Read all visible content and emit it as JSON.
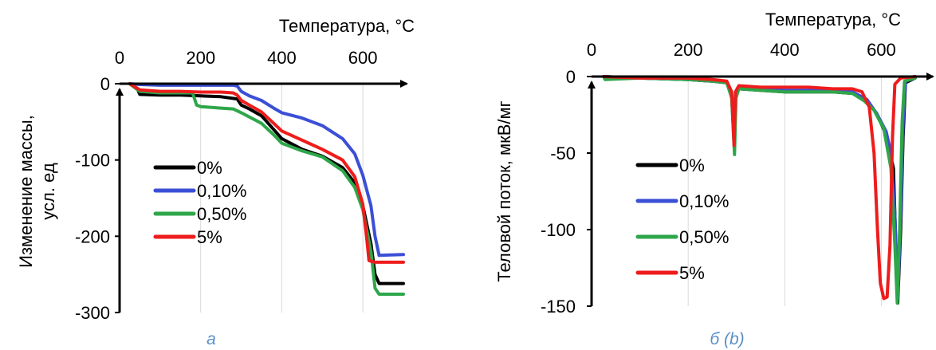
{
  "chart_data": [
    {
      "type": "line",
      "panel_label": "а",
      "xlabel": "Температура, °C",
      "ylabel_line1": "Изменение массы,",
      "ylabel_line2": "усл. ед",
      "xlim": [
        0,
        700
      ],
      "ylim": [
        -300,
        0
      ],
      "x_ticks": [
        "0",
        "200",
        "400",
        "600"
      ],
      "y_ticks": [
        "0",
        "-100",
        "-200",
        "-300"
      ],
      "grid": "vertical",
      "legend_position": "center-left",
      "series": [
        {
          "name": "0%",
          "color": "#000000",
          "points": [
            [
              25,
              0
            ],
            [
              45,
              -8
            ],
            [
              50,
              -14
            ],
            [
              100,
              -15
            ],
            [
              150,
              -15
            ],
            [
              200,
              -16
            ],
            [
              250,
              -17
            ],
            [
              290,
              -20
            ],
            [
              300,
              -28
            ],
            [
              320,
              -33
            ],
            [
              350,
              -42
            ],
            [
              380,
              -60
            ],
            [
              400,
              -72
            ],
            [
              450,
              -86
            ],
            [
              500,
              -95
            ],
            [
              550,
              -110
            ],
            [
              580,
              -130
            ],
            [
              600,
              -160
            ],
            [
              620,
              -210
            ],
            [
              630,
              -250
            ],
            [
              640,
              -262
            ],
            [
              700,
              -262
            ]
          ]
        },
        {
          "name": "0,10%",
          "color": "#3b4fd6",
          "points": [
            [
              25,
              0
            ],
            [
              50,
              -1
            ],
            [
              100,
              -2
            ],
            [
              200,
              -2
            ],
            [
              280,
              -2
            ],
            [
              290,
              -3
            ],
            [
              300,
              -10
            ],
            [
              320,
              -16
            ],
            [
              350,
              -22
            ],
            [
              380,
              -32
            ],
            [
              400,
              -38
            ],
            [
              450,
              -45
            ],
            [
              500,
              -55
            ],
            [
              550,
              -72
            ],
            [
              580,
              -92
            ],
            [
              600,
              -120
            ],
            [
              620,
              -160
            ],
            [
              630,
              -200
            ],
            [
              640,
              -225
            ],
            [
              700,
              -224
            ]
          ]
        },
        {
          "name": "0,50%",
          "color": "#2ea64a",
          "points": [
            [
              25,
              0
            ],
            [
              50,
              -10
            ],
            [
              100,
              -12
            ],
            [
              150,
              -12
            ],
            [
              180,
              -12
            ],
            [
              190,
              -28
            ],
            [
              200,
              -30
            ],
            [
              250,
              -32
            ],
            [
              280,
              -33
            ],
            [
              300,
              -38
            ],
            [
              350,
              -52
            ],
            [
              380,
              -67
            ],
            [
              400,
              -78
            ],
            [
              450,
              -88
            ],
            [
              500,
              -96
            ],
            [
              550,
              -114
            ],
            [
              580,
              -136
            ],
            [
              600,
              -165
            ],
            [
              620,
              -220
            ],
            [
              630,
              -268
            ],
            [
              640,
              -276
            ],
            [
              700,
              -276
            ]
          ]
        },
        {
          "name": "5%",
          "color": "#ee1c1c",
          "points": [
            [
              25,
              0
            ],
            [
              50,
              -8
            ],
            [
              100,
              -10
            ],
            [
              150,
              -10
            ],
            [
              200,
              -11
            ],
            [
              250,
              -11
            ],
            [
              280,
              -12
            ],
            [
              290,
              -15
            ],
            [
              300,
              -22
            ],
            [
              320,
              -28
            ],
            [
              350,
              -37
            ],
            [
              380,
              -52
            ],
            [
              400,
              -62
            ],
            [
              450,
              -74
            ],
            [
              500,
              -86
            ],
            [
              550,
              -100
            ],
            [
              580,
              -122
            ],
            [
              600,
              -158
            ],
            [
              610,
              -205
            ],
            [
              615,
              -232
            ],
            [
              630,
              -234
            ],
            [
              700,
              -234
            ]
          ]
        }
      ]
    },
    {
      "type": "line",
      "panel_label": "б (b)",
      "xlabel": "Температура, °C",
      "ylabel": "Теловой поток, мкВ/мг",
      "xlim": [
        0,
        700
      ],
      "ylim": [
        -150,
        0
      ],
      "x_ticks": [
        "0",
        "200",
        "400",
        "600"
      ],
      "y_ticks": [
        "0",
        "-50",
        "-100",
        "-150"
      ],
      "grid": "vertical",
      "legend_position": "center-left",
      "series": [
        {
          "name": "0%",
          "color": "#000000",
          "points": [
            [
              25,
              0
            ],
            [
              100,
              -1
            ],
            [
              200,
              -2
            ],
            [
              250,
              -3
            ],
            [
              280,
              -4
            ],
            [
              290,
              -12
            ],
            [
              295,
              -40
            ],
            [
              298,
              -12
            ],
            [
              305,
              -8
            ],
            [
              350,
              -9
            ],
            [
              400,
              -10
            ],
            [
              450,
              -10
            ],
            [
              500,
              -10
            ],
            [
              540,
              -11
            ],
            [
              570,
              -16
            ],
            [
              590,
              -24
            ],
            [
              610,
              -38
            ],
            [
              625,
              -60
            ],
            [
              630,
              -110
            ],
            [
              634,
              -148
            ],
            [
              640,
              -100
            ],
            [
              645,
              -40
            ],
            [
              650,
              -4
            ],
            [
              670,
              -1
            ]
          ]
        },
        {
          "name": "0,10%",
          "color": "#3b4fd6",
          "points": [
            [
              25,
              0
            ],
            [
              100,
              -1
            ],
            [
              200,
              -2
            ],
            [
              250,
              -3
            ],
            [
              280,
              -4
            ],
            [
              290,
              -12
            ],
            [
              295,
              -42
            ],
            [
              298,
              -12
            ],
            [
              305,
              -7
            ],
            [
              350,
              -8
            ],
            [
              400,
              -9
            ],
            [
              450,
              -9
            ],
            [
              500,
              -9
            ],
            [
              540,
              -10
            ],
            [
              570,
              -15
            ],
            [
              590,
              -24
            ],
            [
              610,
              -36
            ],
            [
              620,
              -50
            ],
            [
              628,
              -90
            ],
            [
              634,
              -145
            ],
            [
              640,
              -90
            ],
            [
              645,
              -30
            ],
            [
              650,
              -3
            ],
            [
              670,
              -1
            ]
          ]
        },
        {
          "name": "0,50%",
          "color": "#2ea64a",
          "points": [
            [
              25,
              0
            ],
            [
              28,
              -2
            ],
            [
              100,
              -1
            ],
            [
              200,
              -2
            ],
            [
              250,
              -3
            ],
            [
              280,
              -4
            ],
            [
              290,
              -14
            ],
            [
              296,
              -51
            ],
            [
              299,
              -14
            ],
            [
              305,
              -8
            ],
            [
              350,
              -9
            ],
            [
              400,
              -10
            ],
            [
              450,
              -10
            ],
            [
              500,
              -10
            ],
            [
              540,
              -11
            ],
            [
              565,
              -16
            ],
            [
              585,
              -22
            ],
            [
              605,
              -34
            ],
            [
              620,
              -60
            ],
            [
              628,
              -110
            ],
            [
              633,
              -148
            ],
            [
              638,
              -100
            ],
            [
              643,
              -30
            ],
            [
              648,
              -3
            ],
            [
              670,
              -1
            ]
          ]
        },
        {
          "name": "5%",
          "color": "#ee1c1c",
          "points": [
            [
              25,
              0
            ],
            [
              100,
              -1
            ],
            [
              200,
              -1
            ],
            [
              250,
              -2
            ],
            [
              280,
              -3
            ],
            [
              290,
              -10
            ],
            [
              295,
              -45
            ],
            [
              298,
              -10
            ],
            [
              305,
              -6
            ],
            [
              350,
              -7
            ],
            [
              400,
              -7
            ],
            [
              450,
              -7
            ],
            [
              500,
              -8
            ],
            [
              540,
              -8
            ],
            [
              560,
              -10
            ],
            [
              575,
              -20
            ],
            [
              585,
              -50
            ],
            [
              592,
              -100
            ],
            [
              598,
              -135
            ],
            [
              605,
              -145
            ],
            [
              612,
              -144
            ],
            [
              618,
              -110
            ],
            [
              623,
              -40
            ],
            [
              628,
              -5
            ],
            [
              640,
              -1
            ],
            [
              670,
              0
            ]
          ]
        }
      ]
    }
  ]
}
